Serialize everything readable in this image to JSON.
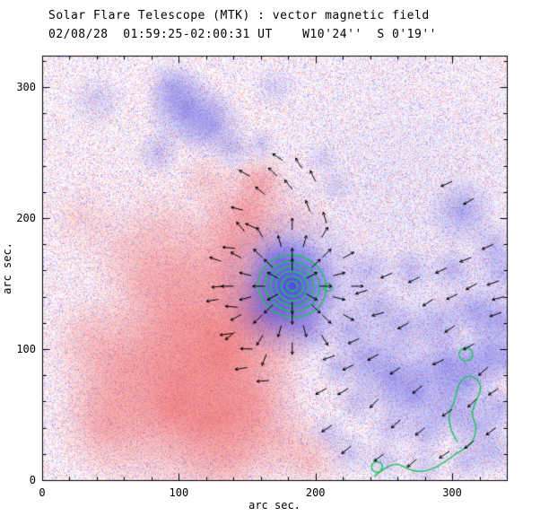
{
  "colors": {
    "positive": "#eb4646",
    "negative": "#4646e1",
    "contour": "#1ec459",
    "vector": "#000000",
    "axis": "#000000",
    "background": "#ffffff"
  },
  "chart_data": {
    "type": "heatmap",
    "title": "Solar Flare Telescope (MTK) : vector magnetic field",
    "subtitle": "02/08/28  01:59:25-02:00:31 UT    W10'24''  S 0'19''",
    "xlabel": "arc sec.",
    "ylabel": "arc sec.",
    "xmax": 340,
    "ymax": 324,
    "xticks": [
      0,
      100,
      200,
      300
    ],
    "yticks": [
      0,
      100,
      200,
      300
    ],
    "minor_step": 20,
    "noise": {
      "seed": 7,
      "density": 0.88,
      "strength": 115
    },
    "blob_format": "[x_arcsec, y_arcsec, sigma, alpha, polarity p=red/positive n=blue/negative]",
    "blobs": [
      [
        100,
        130,
        80,
        0.06,
        "p"
      ],
      [
        285,
        140,
        70,
        0.07,
        "n"
      ],
      [
        260,
        250,
        60,
        0.05,
        "n"
      ],
      [
        95,
        55,
        35,
        0.45,
        "p"
      ],
      [
        60,
        85,
        25,
        0.32,
        "p"
      ],
      [
        130,
        95,
        30,
        0.45,
        "p"
      ],
      [
        155,
        125,
        22,
        0.42,
        "p"
      ],
      [
        105,
        125,
        25,
        0.32,
        "p"
      ],
      [
        140,
        175,
        20,
        0.42,
        "p"
      ],
      [
        150,
        205,
        16,
        0.38,
        "p"
      ],
      [
        160,
        228,
        10,
        0.33,
        "p"
      ],
      [
        75,
        150,
        18,
        0.22,
        "p"
      ],
      [
        45,
        40,
        18,
        0.28,
        "p"
      ],
      [
        175,
        30,
        15,
        0.28,
        "p"
      ],
      [
        198,
        14,
        12,
        0.22,
        "p"
      ],
      [
        120,
        228,
        10,
        0.22,
        "p"
      ],
      [
        90,
        195,
        15,
        0.18,
        "p"
      ],
      [
        35,
        110,
        15,
        0.18,
        "p"
      ],
      [
        186,
        200,
        12,
        0.14,
        "p"
      ],
      [
        120,
        45,
        22,
        0.3,
        "p"
      ],
      [
        155,
        60,
        18,
        0.3,
        "p"
      ],
      [
        140,
        20,
        18,
        0.28,
        "p"
      ],
      [
        100,
        160,
        20,
        0.25,
        "p"
      ],
      [
        60,
        180,
        15,
        0.18,
        "p"
      ],
      [
        30,
        200,
        12,
        0.15,
        "p"
      ],
      [
        183,
        148,
        26,
        0.5,
        "n"
      ],
      [
        183,
        148,
        16,
        0.85,
        "n"
      ],
      [
        172,
        132,
        14,
        0.4,
        "n"
      ],
      [
        176,
        166,
        12,
        0.4,
        "n"
      ],
      [
        196,
        114,
        8,
        0.3,
        "n"
      ],
      [
        105,
        283,
        14,
        0.5,
        "n"
      ],
      [
        125,
        270,
        12,
        0.4,
        "n"
      ],
      [
        85,
        250,
        8,
        0.28,
        "n"
      ],
      [
        140,
        252,
        7,
        0.25,
        "n"
      ],
      [
        95,
        300,
        10,
        0.3,
        "n"
      ],
      [
        160,
        256,
        6,
        0.22,
        "n"
      ],
      [
        40,
        290,
        10,
        0.2,
        "n"
      ],
      [
        170,
        300,
        8,
        0.18,
        "n"
      ],
      [
        307,
        205,
        12,
        0.38,
        "n"
      ],
      [
        335,
        160,
        10,
        0.3,
        "n"
      ],
      [
        235,
        95,
        12,
        0.33,
        "n"
      ],
      [
        255,
        80,
        14,
        0.4,
        "n"
      ],
      [
        275,
        65,
        14,
        0.42,
        "n"
      ],
      [
        295,
        90,
        12,
        0.4,
        "n"
      ],
      [
        310,
        75,
        12,
        0.42,
        "n"
      ],
      [
        325,
        95,
        10,
        0.4,
        "n"
      ],
      [
        335,
        120,
        12,
        0.4,
        "n"
      ],
      [
        315,
        130,
        10,
        0.35,
        "n"
      ],
      [
        290,
        120,
        10,
        0.3,
        "n"
      ],
      [
        265,
        115,
        10,
        0.3,
        "n"
      ],
      [
        245,
        130,
        10,
        0.3,
        "n"
      ],
      [
        300,
        50,
        10,
        0.33,
        "n"
      ],
      [
        320,
        40,
        10,
        0.33,
        "n"
      ],
      [
        335,
        55,
        8,
        0.3,
        "n"
      ],
      [
        280,
        35,
        8,
        0.28,
        "n"
      ],
      [
        255,
        40,
        8,
        0.25,
        "n"
      ],
      [
        230,
        60,
        8,
        0.25,
        "n"
      ],
      [
        225,
        115,
        8,
        0.25,
        "n"
      ],
      [
        240,
        160,
        8,
        0.25,
        "n"
      ],
      [
        270,
        160,
        8,
        0.25,
        "n"
      ],
      [
        300,
        160,
        8,
        0.3,
        "n"
      ],
      [
        330,
        180,
        8,
        0.25,
        "n"
      ],
      [
        340,
        90,
        8,
        0.3,
        "n"
      ],
      [
        215,
        85,
        7,
        0.25,
        "n"
      ],
      [
        210,
        35,
        7,
        0.22,
        "n"
      ],
      [
        225,
        20,
        8,
        0.22,
        "n"
      ],
      [
        250,
        15,
        8,
        0.22,
        "n"
      ],
      [
        280,
        10,
        8,
        0.22,
        "n"
      ],
      [
        310,
        15,
        8,
        0.28,
        "n"
      ],
      [
        330,
        20,
        8,
        0.28,
        "n"
      ],
      [
        205,
        245,
        6,
        0.18,
        "n"
      ],
      [
        215,
        225,
        6,
        0.18,
        "n"
      ]
    ],
    "contours": {
      "rings": {
        "cx": 183,
        "cy": 148,
        "radii": [
          4,
          8,
          12,
          16,
          20,
          25
        ]
      },
      "circles": [
        [
          209,
          147,
          3
        ],
        [
          310,
          96,
          5
        ],
        [
          245,
          10,
          4
        ]
      ],
      "paths": [
        [
          [
            243,
            3
          ],
          [
            252,
            10
          ],
          [
            260,
            13
          ],
          [
            268,
            8
          ],
          [
            277,
            6
          ],
          [
            287,
            9
          ],
          [
            296,
            15
          ],
          [
            304,
            21
          ],
          [
            311,
            25
          ],
          [
            316,
            31
          ],
          [
            318,
            41
          ],
          [
            314,
            50
          ],
          [
            317,
            60
          ],
          [
            322,
            70
          ],
          [
            318,
            78
          ],
          [
            310,
            80
          ],
          [
            304,
            72
          ],
          [
            302,
            60
          ],
          [
            297,
            50
          ],
          [
            299,
            38
          ],
          [
            304,
            29
          ]
        ]
      ]
    },
    "arrow_len": 9,
    "radial_arrows": {
      "cx": 183,
      "cy": 148,
      "rings": [
        {
          "r": 12,
          "n": 6,
          "off": 30
        },
        {
          "r": 20,
          "n": 8,
          "off": 0
        },
        {
          "r": 31,
          "n": 12,
          "off": 15
        },
        {
          "r": 43,
          "n": 12,
          "off": 0
        }
      ]
    },
    "arrow_format": "[x_arcsec, y_arcsec, angle_deg_ccw_from_east]",
    "arrows": [
      [
        232,
        108,
        205
      ],
      [
        246,
        96,
        210
      ],
      [
        262,
        86,
        215
      ],
      [
        278,
        72,
        220
      ],
      [
        294,
        92,
        205
      ],
      [
        302,
        118,
        215
      ],
      [
        316,
        104,
        210
      ],
      [
        326,
        86,
        222
      ],
      [
        336,
        128,
        200
      ],
      [
        250,
        128,
        196
      ],
      [
        268,
        120,
        210
      ],
      [
        286,
        138,
        214
      ],
      [
        304,
        142,
        206
      ],
      [
        318,
        150,
        210
      ],
      [
        334,
        152,
        200
      ],
      [
        246,
        62,
        228
      ],
      [
        262,
        46,
        224
      ],
      [
        280,
        40,
        220
      ],
      [
        300,
        54,
        216
      ],
      [
        318,
        62,
        224
      ],
      [
        334,
        70,
        214
      ],
      [
        228,
        88,
        206
      ],
      [
        224,
        70,
        212
      ],
      [
        238,
        145,
        198
      ],
      [
        256,
        158,
        204
      ],
      [
        276,
        155,
        208
      ],
      [
        296,
        162,
        206
      ],
      [
        314,
        170,
        202
      ],
      [
        330,
        180,
        205
      ],
      [
        214,
        95,
        200
      ],
      [
        208,
        70,
        210
      ],
      [
        212,
        42,
        215
      ],
      [
        226,
        26,
        220
      ],
      [
        250,
        20,
        218
      ],
      [
        274,
        16,
        222
      ],
      [
        298,
        22,
        215
      ],
      [
        316,
        30,
        220
      ],
      [
        332,
        40,
        218
      ],
      [
        152,
        232,
        150
      ],
      [
        163,
        218,
        140
      ],
      [
        147,
        206,
        165
      ],
      [
        157,
        192,
        155
      ],
      [
        141,
        177,
        175
      ],
      [
        133,
        148,
        185
      ],
      [
        143,
        132,
        175
      ],
      [
        139,
        112,
        188
      ],
      [
        154,
        100,
        178
      ],
      [
        150,
        86,
        190
      ],
      [
        166,
        76,
        184
      ],
      [
        172,
        232,
        135
      ],
      [
        183,
        222,
        128
      ],
      [
        176,
        244,
        145
      ],
      [
        190,
        238,
        120
      ],
      [
        200,
        228,
        115
      ],
      [
        196,
        205,
        110
      ],
      [
        208,
        196,
        105
      ],
      [
        148,
        190,
        130
      ],
      [
        131,
        167,
        160
      ],
      [
        129,
        138,
        190
      ],
      [
        141,
        113,
        220
      ],
      [
        164,
        96,
        250
      ],
      [
        300,
        228,
        205
      ],
      [
        316,
        215,
        210
      ],
      [
        338,
        140,
        195
      ]
    ]
  }
}
